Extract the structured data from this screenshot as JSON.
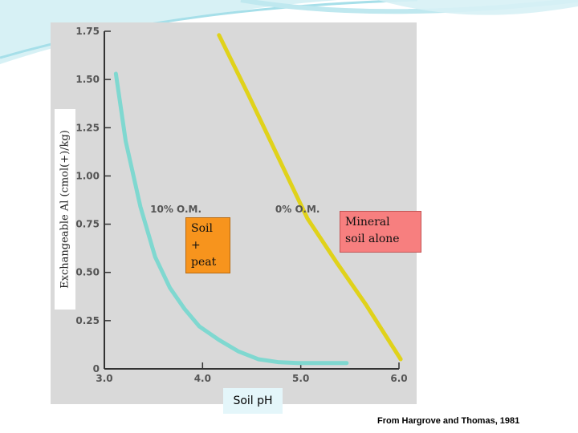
{
  "chart_data": {
    "type": "line",
    "title": "",
    "xlabel": "Soil pH",
    "ylabel": "Exchangeable Al (cmol(+)/kg)",
    "xlim": [
      3.0,
      6.0
    ],
    "ylim": [
      0,
      1.75
    ],
    "x_ticks": [
      "3.0",
      "4.0",
      "5.0",
      "6.0"
    ],
    "y_ticks": [
      "0",
      "0.25",
      "0.50",
      "0.75",
      "1.00",
      "1.25",
      "1.50",
      "1.75"
    ],
    "grid": false,
    "series": [
      {
        "name": "10% O.M.",
        "color": "#7fd8d0",
        "x": [
          3.15,
          3.25,
          3.4,
          3.55,
          3.7,
          3.85,
          4.0,
          4.2,
          4.4,
          4.6,
          4.8,
          5.0,
          5.2,
          5.5
        ],
        "y": [
          1.53,
          1.18,
          0.84,
          0.58,
          0.42,
          0.31,
          0.22,
          0.15,
          0.09,
          0.05,
          0.035,
          0.03,
          0.03,
          0.03
        ]
      },
      {
        "name": "0% O.M.",
        "color": "#e0d21a",
        "x": [
          4.2,
          4.5,
          4.8,
          5.1,
          5.4,
          5.7,
          6.05
        ],
        "y": [
          1.73,
          1.42,
          1.1,
          0.78,
          0.55,
          0.33,
          0.05
        ]
      }
    ]
  },
  "annotations": {
    "soil_peat": [
      "Soil",
      "+",
      "peat"
    ],
    "mineral": [
      "Mineral",
      "soil alone"
    ]
  },
  "source": "From Hargrove and Thomas, 1981",
  "colors": {
    "panel": "#d9d9d9",
    "decoration": "#9ad8e3"
  }
}
